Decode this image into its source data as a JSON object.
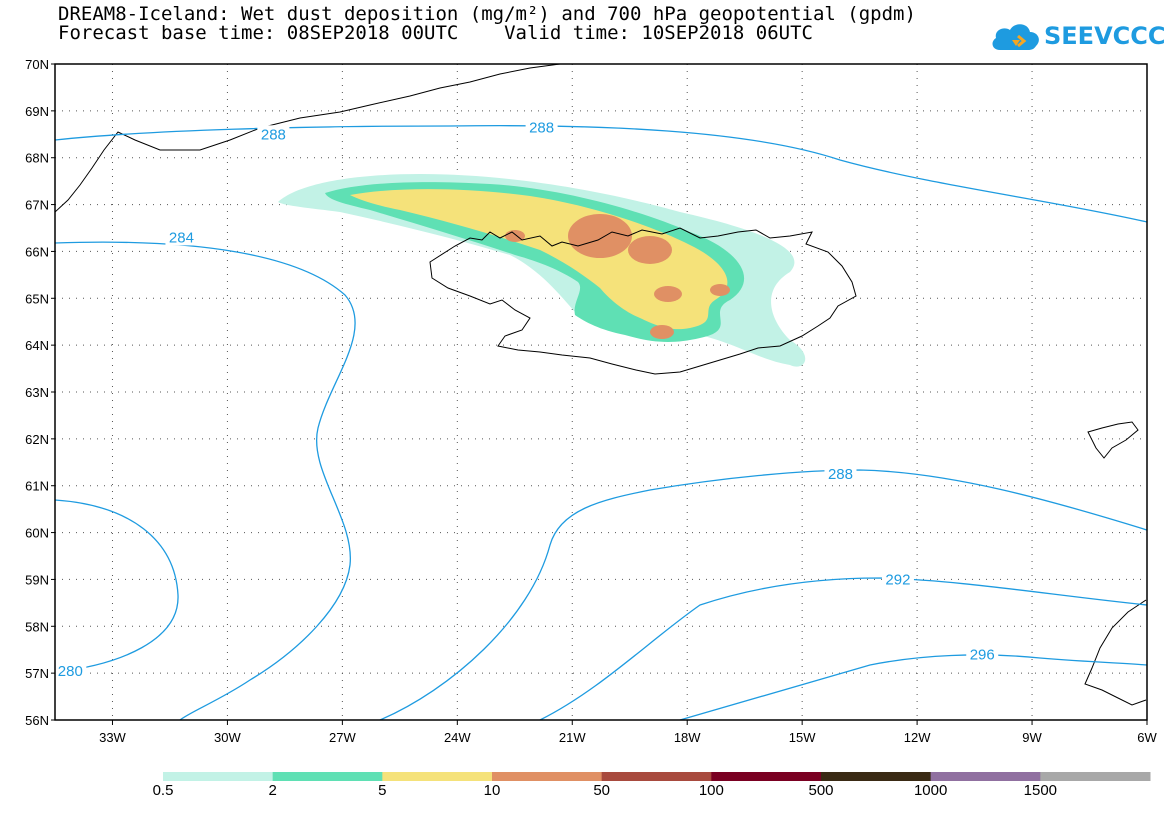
{
  "title": {
    "line1": "DREAM8-Iceland: Wet dust deposition (mg/m²) and 700 hPa geopotential (gpdm)",
    "line2": "Forecast base time: 08SEP2018 00UTC    Valid time: 10SEP2018 06UTC"
  },
  "logo": {
    "text": "SEEVCCC",
    "icon": "cloud-icon",
    "color": "#1e9be0"
  },
  "map": {
    "lat_range": [
      56,
      70
    ],
    "lon_range": [
      -34.5,
      -6
    ],
    "lat_labels": [
      "70N",
      "69N",
      "68N",
      "67N",
      "66N",
      "65N",
      "64N",
      "63N",
      "62N",
      "61N",
      "60N",
      "59N",
      "58N",
      "57N",
      "56N"
    ],
    "lon_labels": [
      "33W",
      "30W",
      "27W",
      "24W",
      "21W",
      "18W",
      "15W",
      "12W",
      "9W",
      "6W"
    ],
    "gridlines": "dotted"
  },
  "contours": {
    "color": "#1e9be0",
    "labels": [
      {
        "value": "288",
        "lon": -28.8,
        "lat": 68.5
      },
      {
        "value": "288",
        "lon": -21.8,
        "lat": 68.65
      },
      {
        "value": "284",
        "lon": -31.2,
        "lat": 66.3
      },
      {
        "value": "288",
        "lon": -14.0,
        "lat": 61.25
      },
      {
        "value": "292",
        "lon": -12.5,
        "lat": 59.0
      },
      {
        "value": "296",
        "lon": -10.3,
        "lat": 57.4
      },
      {
        "value": "280",
        "lon": -34.1,
        "lat": 57.05
      }
    ]
  },
  "colorbar": {
    "labels": [
      "0.5",
      "2",
      "5",
      "10",
      "50",
      "100",
      "500",
      "1000",
      "1500"
    ],
    "colors": [
      "#c2f2e6",
      "#5fe0b4",
      "#f5e27a",
      "#e09064",
      "#a84a3e",
      "#7a0022",
      "#3a2a14",
      "#9070a0",
      "#a8a8a8"
    ]
  }
}
